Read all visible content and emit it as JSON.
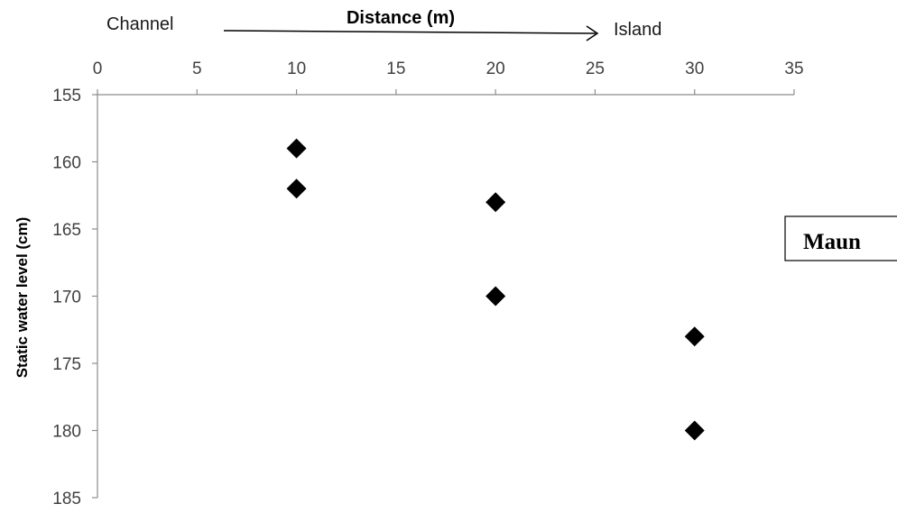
{
  "chart_data": {
    "type": "scatter",
    "x_axis_position": "top",
    "y_axis_inverted": true,
    "title": "Distance (m)",
    "xlabel": "Distance (m)",
    "ylabel": "Static water level (cm)",
    "left_annotation": "Channel",
    "right_annotation": "Island",
    "legend_box_text": "Maun",
    "xlim": [
      0,
      35
    ],
    "ylim": [
      155,
      185
    ],
    "x_ticks": [
      "0",
      "5",
      "10",
      "15",
      "20",
      "25",
      "30",
      "35"
    ],
    "y_ticks": [
      "155",
      "160",
      "165",
      "170",
      "175",
      "180",
      "185"
    ],
    "marker": "diamond",
    "marker_color": "#000000",
    "grid": false,
    "points": [
      {
        "x": 10,
        "y": 159
      },
      {
        "x": 10,
        "y": 162
      },
      {
        "x": 20,
        "y": 163
      },
      {
        "x": 20,
        "y": 170
      },
      {
        "x": 30,
        "y": 173
      },
      {
        "x": 30,
        "y": 180
      }
    ]
  }
}
